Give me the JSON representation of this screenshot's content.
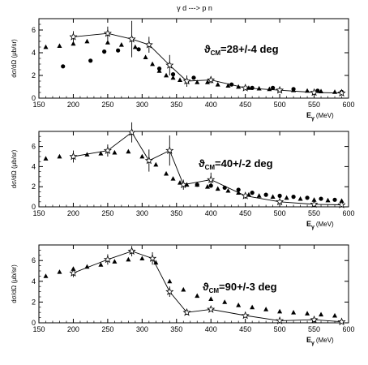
{
  "figure": {
    "title": "γ d ---> p n"
  },
  "chart_data": [
    {
      "type": "scatter",
      "annotation": "ϑ",
      "annotation_sub": "CM",
      "annotation_rest": "=28+/-4 deg",
      "xlabel": "E",
      "xlabel_sub": "γ",
      "xlabel_unit": "(MeV)",
      "ylabel": "dσ/dΩ (μb/sr)",
      "xlim": [
        150,
        600
      ],
      "ylim": [
        0,
        7
      ],
      "xticks": [
        150,
        200,
        250,
        300,
        350,
        400,
        450,
        500,
        550,
        600
      ],
      "yticks": [
        0,
        2,
        4,
        6
      ],
      "series": [
        {
          "marker": "triangle",
          "x": [
            160,
            180,
            200,
            220,
            250,
            270,
            290,
            305,
            315,
            325,
            335,
            345,
            355,
            365,
            380,
            395,
            410,
            425,
            440,
            455,
            470,
            485,
            500,
            520,
            540,
            560,
            580
          ],
          "y": [
            4.5,
            4.6,
            4.8,
            5.0,
            4.9,
            4.7,
            4.5,
            3.6,
            3.0,
            2.4,
            2.0,
            1.8,
            1.6,
            1.5,
            1.4,
            1.4,
            1.2,
            1.1,
            1.0,
            0.9,
            0.85,
            0.8,
            0.75,
            0.7,
            0.65,
            0.6,
            0.55
          ]
        },
        {
          "marker": "circle",
          "x": [
            185,
            225,
            245,
            265,
            295,
            325,
            345,
            375,
            400,
            430,
            460,
            490,
            520,
            555,
            590
          ],
          "y": [
            2.8,
            3.3,
            4.1,
            4.2,
            4.3,
            2.6,
            2.1,
            1.8,
            1.6,
            1.2,
            0.9,
            0.9,
            0.8,
            0.65,
            0.55
          ]
        },
        {
          "marker": "star",
          "line": true,
          "x": [
            200,
            250,
            285,
            310,
            340,
            365,
            400,
            450,
            500,
            550,
            590
          ],
          "y": [
            5.4,
            5.7,
            5.2,
            4.7,
            2.9,
            1.5,
            1.6,
            0.9,
            0.7,
            0.5,
            0.45
          ],
          "err": [
            0.5,
            0.6,
            1.6,
            0.7,
            0.9,
            0.5,
            0.3,
            0.2,
            0.2,
            0.2,
            0.2
          ]
        }
      ]
    },
    {
      "type": "scatter",
      "annotation": "ϑ",
      "annotation_sub": "CM",
      "annotation_rest": "=40+/-2 deg",
      "xlabel": "E",
      "xlabel_sub": "γ",
      "xlabel_unit": "(MeV)",
      "ylabel": "dσ/dΩ (μb/sr)",
      "xlim": [
        150,
        600
      ],
      "ylim": [
        0,
        7.5
      ],
      "xticks": [
        150,
        200,
        250,
        300,
        350,
        400,
        450,
        500,
        550,
        600
      ],
      "yticks": [
        0,
        2,
        4,
        6
      ],
      "series": [
        {
          "marker": "triangle",
          "x": [
            160,
            180,
            200,
            220,
            240,
            260,
            280,
            300,
            320,
            335,
            345,
            355,
            365,
            380,
            395,
            410,
            425,
            440,
            455,
            470,
            490,
            510,
            530,
            550,
            570,
            590
          ],
          "y": [
            4.8,
            5.0,
            5.1,
            5.2,
            5.3,
            5.4,
            5.5,
            5.0,
            4.2,
            3.3,
            2.8,
            2.4,
            2.2,
            2.2,
            2.0,
            1.8,
            1.6,
            1.4,
            1.2,
            1.1,
            1.0,
            0.9,
            0.8,
            0.7,
            0.65,
            0.6
          ]
        },
        {
          "marker": "circle",
          "x": [
            380,
            400,
            420,
            440,
            460,
            480,
            500,
            520,
            540,
            560,
            580
          ],
          "y": [
            2.2,
            2.1,
            1.9,
            1.7,
            1.4,
            1.2,
            1.1,
            1.0,
            0.9,
            0.8,
            0.7
          ]
        },
        {
          "marker": "star",
          "line": true,
          "x": [
            200,
            250,
            285,
            310,
            340,
            360,
            400,
            450,
            500,
            550,
            590
          ],
          "y": [
            5.0,
            5.6,
            7.4,
            4.6,
            5.6,
            2.2,
            2.7,
            1.1,
            0.5,
            0.25,
            0.2
          ],
          "err": [
            0.6,
            0.6,
            1.0,
            1.1,
            1.5,
            0.5,
            0.7,
            0.3,
            0.2,
            0.1,
            0.1
          ]
        }
      ]
    },
    {
      "type": "scatter",
      "annotation": "ϑ",
      "annotation_sub": "CM",
      "annotation_rest": "=90+/-3 deg",
      "xlabel": "E",
      "xlabel_sub": "γ",
      "xlabel_unit": "(MeV)",
      "ylabel": "dσ/dΩ (μb/sr)",
      "xlim": [
        150,
        600
      ],
      "ylim": [
        0,
        7.5
      ],
      "xticks": [
        150,
        200,
        250,
        300,
        350,
        400,
        450,
        500,
        550,
        600
      ],
      "yticks": [
        0,
        2,
        4,
        6
      ],
      "series": [
        {
          "marker": "triangle",
          "x": [
            160,
            180,
            200,
            220,
            240,
            260,
            280,
            300,
            320,
            340,
            360,
            380,
            400,
            420,
            440,
            460,
            480,
            500,
            520,
            540,
            560,
            580
          ],
          "y": [
            4.5,
            4.9,
            5.2,
            5.4,
            5.6,
            5.9,
            6.1,
            6.2,
            5.8,
            4.0,
            3.2,
            2.6,
            2.3,
            2.0,
            1.7,
            1.5,
            1.3,
            1.1,
            1.0,
            0.9,
            0.8,
            0.7
          ]
        },
        {
          "marker": "star",
          "line": true,
          "x": [
            200,
            250,
            285,
            315,
            340,
            365,
            400,
            450,
            500,
            550,
            590
          ],
          "y": [
            4.8,
            6.1,
            6.9,
            6.2,
            3.0,
            1.0,
            1.3,
            0.7,
            0.2,
            0.3,
            0.1
          ],
          "err": [
            0.4,
            0.5,
            0.5,
            0.6,
            0.5,
            0.2,
            0.2,
            0.2,
            0.1,
            0.1,
            0.1
          ]
        }
      ]
    }
  ]
}
